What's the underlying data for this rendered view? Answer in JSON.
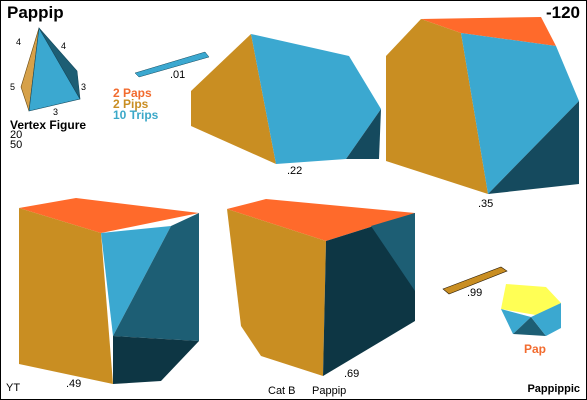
{
  "header": {
    "title": "Pappip",
    "code": "-120"
  },
  "vertex_figure": {
    "label": "Vertex Figure",
    "edge_labels": [
      "4",
      "4",
      "5",
      "3",
      "3"
    ],
    "num_a": "20",
    "num_b": "50"
  },
  "legend": {
    "paps": "2 Paps",
    "pips": "2 Pips",
    "trips": "10 Trips",
    "colors": {
      "paps": "#f26b2e",
      "pips": "#c98e22",
      "trips": "#3ba8c8"
    }
  },
  "stages": [
    {
      "value": ".01"
    },
    {
      "value": ".22"
    },
    {
      "value": ".35"
    },
    {
      "value": ".49"
    },
    {
      "value": ".69"
    },
    {
      "value": ".99"
    }
  ],
  "cap": {
    "label": "Pap",
    "color": "#f26b2e"
  },
  "footer": {
    "left": "YT",
    "category": "Cat B",
    "name": "Pappip",
    "right": "Pappippic"
  },
  "colors": {
    "orange": "#ff6a2b",
    "ochre": "#c98e22",
    "blue": "#3ba8d0",
    "dark_teal": "#154a5e",
    "yellow": "#ffff55"
  }
}
